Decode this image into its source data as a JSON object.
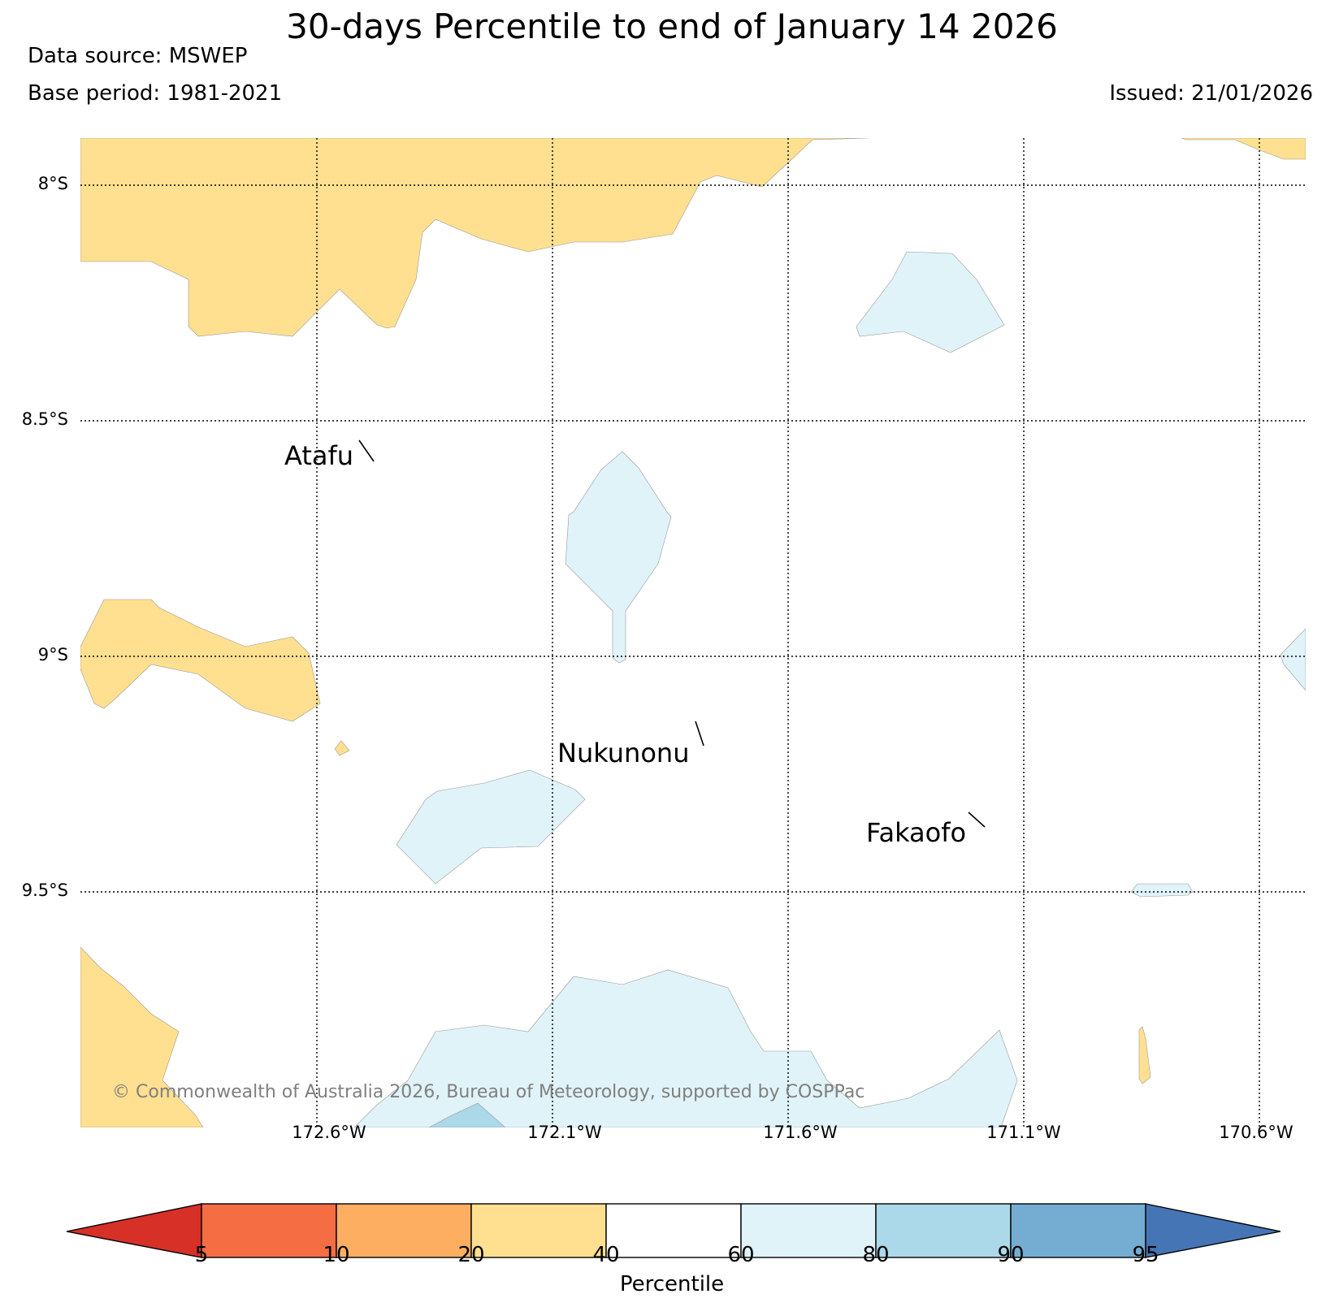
{
  "header": {
    "title": "30-days Percentile to end of January 14 2026",
    "data_source": "Data source: MSWEP",
    "base_period": "Base period: 1981-2021",
    "issued": "Issued: 21/01/2026"
  },
  "map": {
    "lat_labels": [
      "8°S",
      "8.5°S",
      "9°S",
      "9.5°S"
    ],
    "lon_labels": [
      "172.6°W",
      "172.1°W",
      "171.6°W",
      "171.1°W",
      "170.6°W"
    ],
    "places": [
      "Atafu",
      "Nukunonu",
      "Fakaofo"
    ],
    "copyright": "© Commonwealth of Australia 2026, Bureau of Meteorology, supported by COSPPac"
  },
  "colorbar": {
    "label": "Percentile",
    "ticks": [
      "5",
      "10",
      "20",
      "40",
      "60",
      "80",
      "90",
      "95"
    ],
    "colors": {
      "below_5": "#d73027",
      "5_10": "#f46d43",
      "10_20": "#fdae61",
      "20_40": "#fee090",
      "40_60": "#ffffff",
      "60_80": "#e0f3f8",
      "80_90": "#abd9e9",
      "90_95": "#74add1",
      "above_95": "#4575b4"
    }
  }
}
